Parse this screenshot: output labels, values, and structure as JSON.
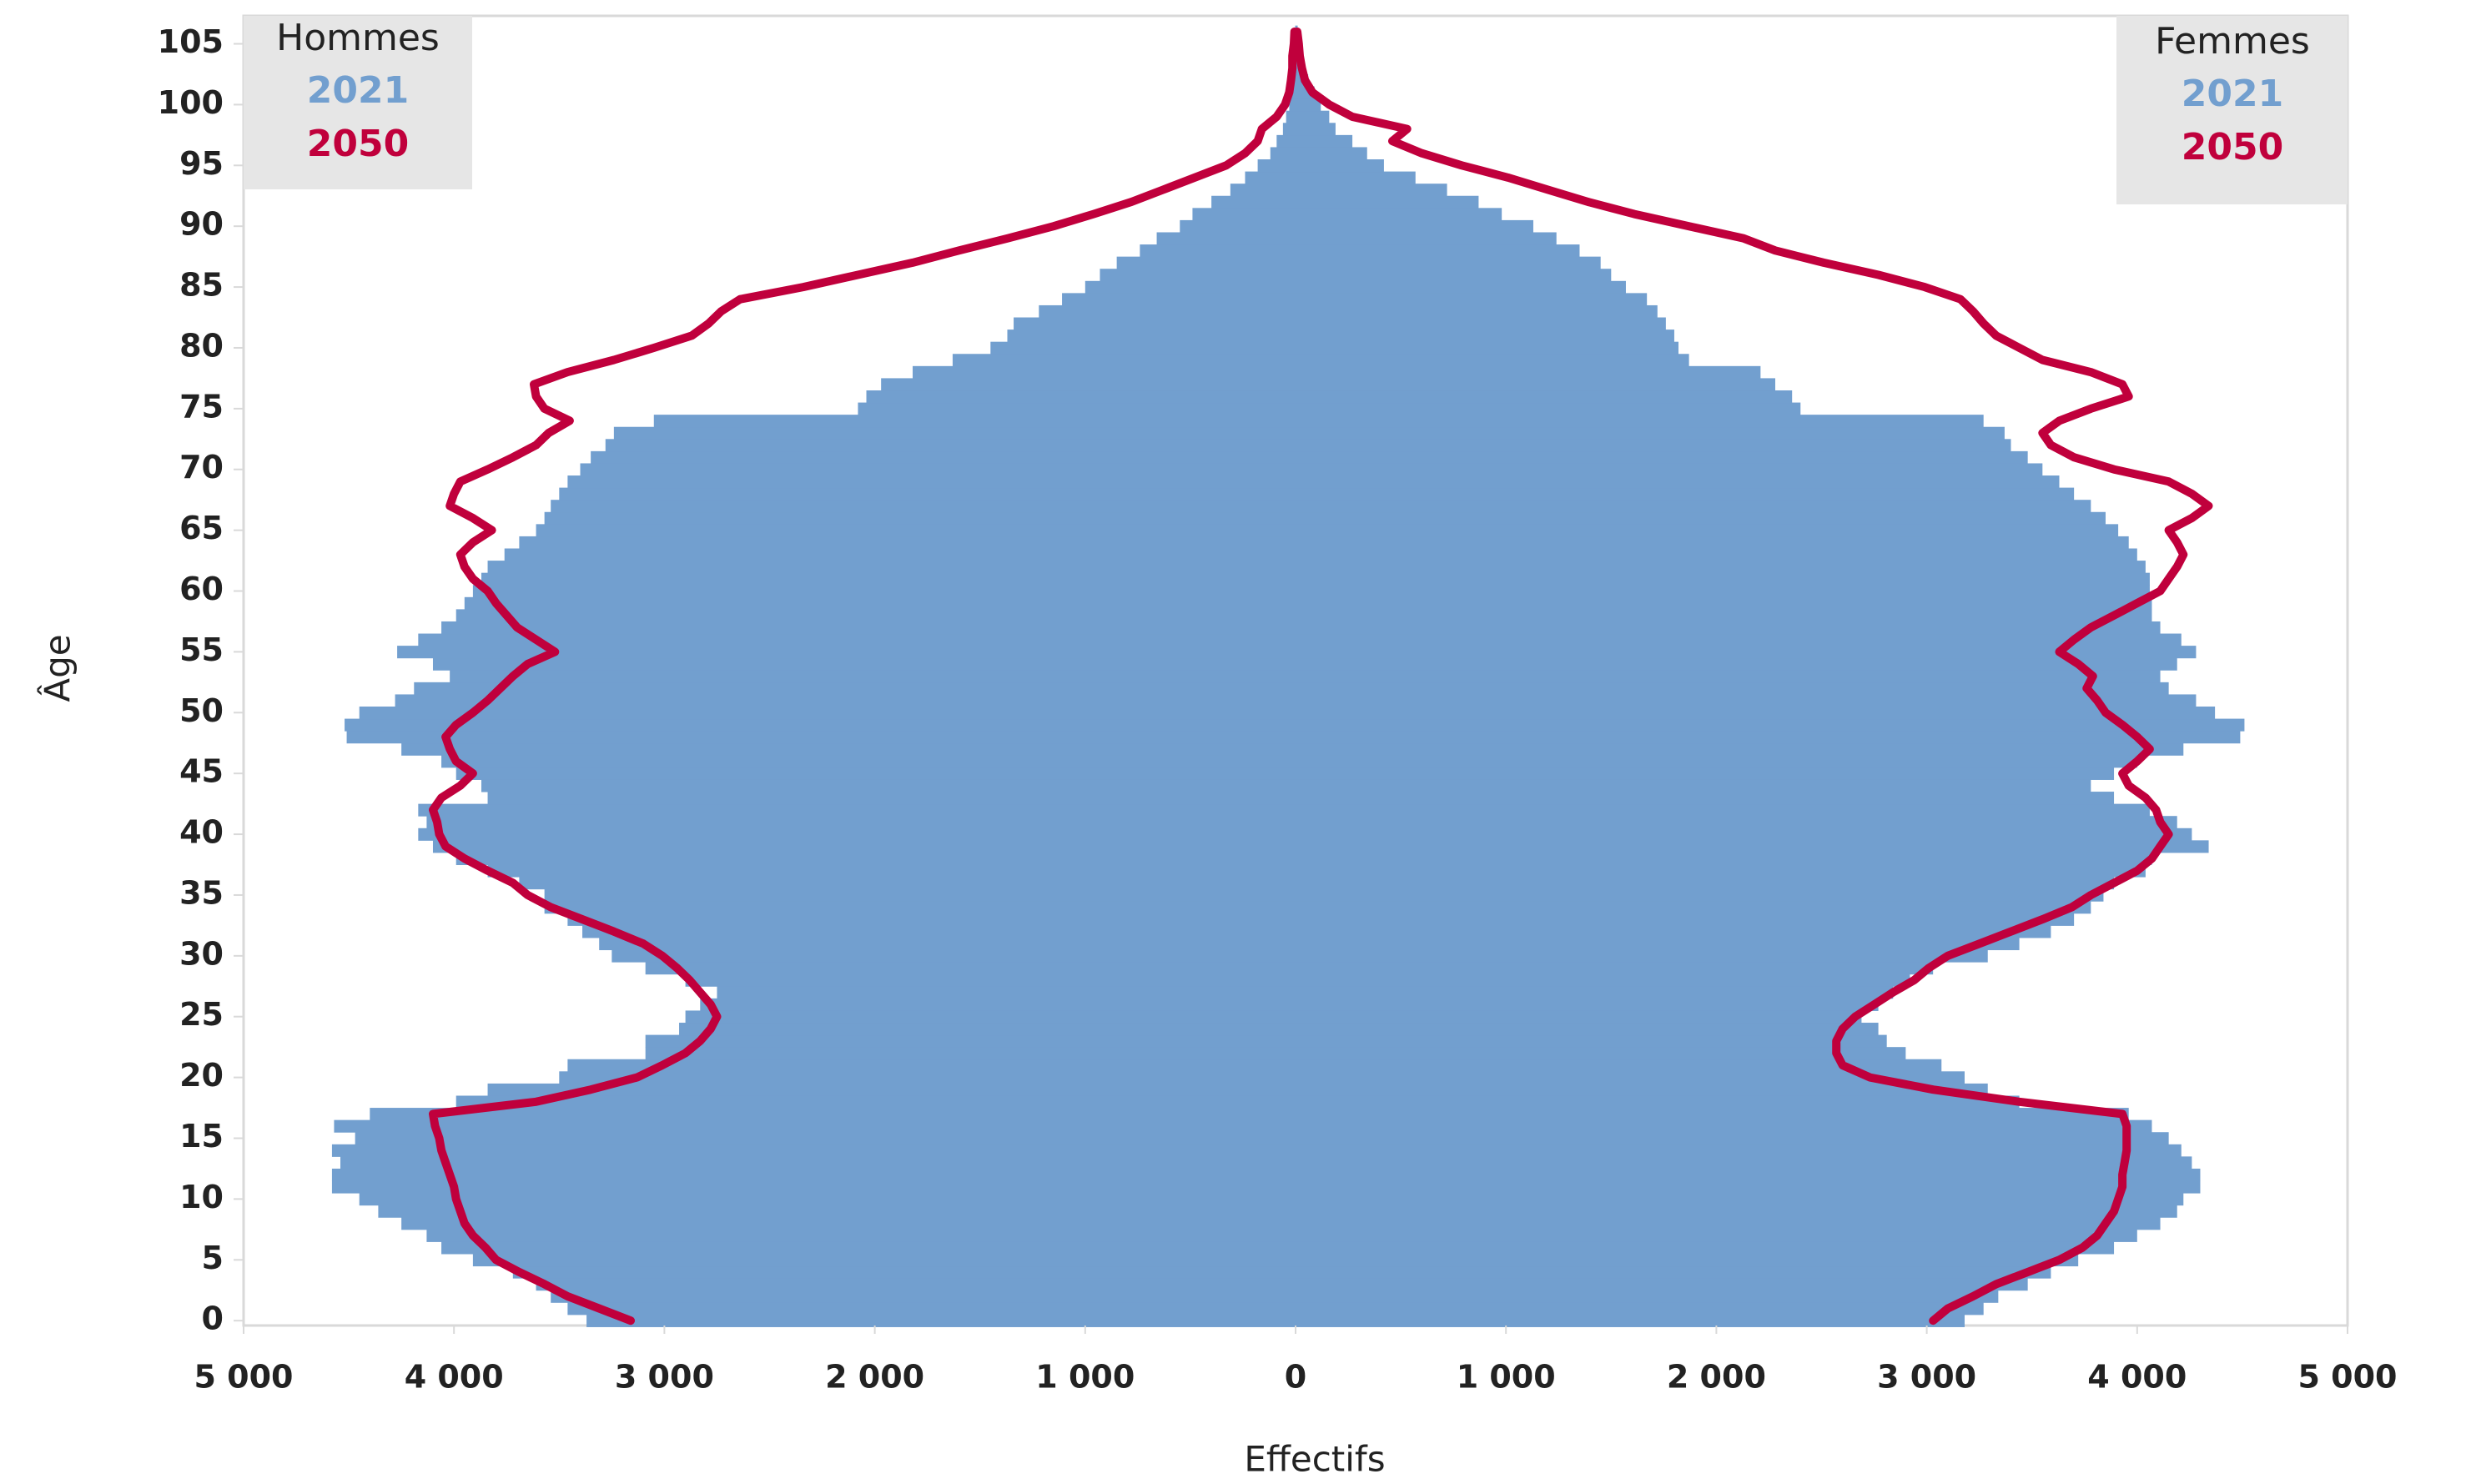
{
  "chart_data": {
    "type": "pyramid",
    "x_label": "Effectifs",
    "y_label": "Âge",
    "xlim": [
      -5000,
      5000
    ],
    "xticks": [
      {
        "value": -5000,
        "label": "5 000"
      },
      {
        "value": -4000,
        "label": "4 000"
      },
      {
        "value": -3000,
        "label": "3 000"
      },
      {
        "value": -2000,
        "label": "2 000"
      },
      {
        "value": -1000,
        "label": "1 000"
      },
      0,
      {
        "value": 1000,
        "label": "1 000"
      },
      {
        "value": 2000,
        "label": "2 000"
      },
      {
        "value": 3000,
        "label": "3 000"
      },
      {
        "value": 4000,
        "label": "4 000"
      },
      {
        "value": 5000,
        "label": "5 000"
      }
    ],
    "ylim": [
      -0.4,
      107.3
    ],
    "yticks": [
      0,
      5,
      10,
      15,
      20,
      25,
      30,
      35,
      40,
      45,
      50,
      55,
      60,
      65,
      70,
      75,
      80,
      85,
      90,
      95,
      100,
      105
    ],
    "y": [
      0,
      1,
      2,
      3,
      4,
      5,
      6,
      7,
      8,
      9,
      10,
      11,
      12,
      13,
      14,
      15,
      16,
      17,
      18,
      19,
      20,
      21,
      22,
      23,
      24,
      25,
      26,
      27,
      28,
      29,
      30,
      31,
      32,
      33,
      34,
      35,
      36,
      37,
      38,
      39,
      40,
      41,
      42,
      43,
      44,
      45,
      46,
      47,
      48,
      49,
      50,
      51,
      52,
      53,
      54,
      55,
      56,
      57,
      58,
      59,
      60,
      61,
      62,
      63,
      64,
      65,
      66,
      67,
      68,
      69,
      70,
      71,
      72,
      73,
      74,
      75,
      76,
      77,
      78,
      79,
      80,
      81,
      82,
      83,
      84,
      85,
      86,
      87,
      88,
      89,
      90,
      91,
      92,
      93,
      94,
      95,
      96,
      97,
      98,
      99,
      100,
      101,
      102,
      103,
      104,
      105,
      106
    ],
    "panels": [
      {
        "name": "Hommes",
        "series": [
          {
            "name": "2021",
            "color": "#729fcf",
            "style": "bar",
            "values": [
              -3370,
              -3460,
              -3540,
              -3610,
              -3720,
              -3910,
              -4060,
              -4130,
              -4250,
              -4360,
              -4450,
              -4580,
              -4580,
              -4540,
              -4580,
              -4470,
              -4570,
              -4400,
              -3990,
              -3840,
              -3500,
              -3460,
              -3090,
              -3090,
              -2930,
              -2900,
              -2830,
              -2750,
              -2900,
              -3090,
              -3250,
              -3310,
              -3390,
              -3460,
              -3570,
              -3570,
              -3690,
              -3840,
              -3990,
              -4100,
              -4170,
              -4130,
              -4170,
              -3840,
              -3870,
              -3990,
              -4060,
              -4250,
              -4510,
              -4520,
              -4450,
              -4280,
              -4190,
              -4020,
              -4100,
              -4270,
              -4170,
              -4060,
              -3990,
              -3950,
              -3910,
              -3870,
              -3840,
              -3760,
              -3690,
              -3610,
              -3570,
              -3540,
              -3500,
              -3460,
              -3400,
              -3350,
              -3280,
              -3240,
              -3050,
              -2080,
              -2040,
              -1970,
              -1820,
              -1630,
              -1450,
              -1370,
              -1340,
              -1220,
              -1110,
              -1000,
              -930,
              -850,
              -740,
              -660,
              -550,
              -490,
              -400,
              -310,
              -240,
              -180,
              -120,
              -90,
              -60,
              -45,
              -30,
              -22,
              -15,
              -8,
              -5,
              -3,
              -2
            ]
          },
          {
            "name": "2050",
            "color": "#c0003c",
            "style": "line",
            "values": [
              -3160,
              -3310,
              -3460,
              -3570,
              -3690,
              -3800,
              -3850,
              -3910,
              -3950,
              -3970,
              -3990,
              -4000,
              -4020,
              -4040,
              -4060,
              -4070,
              -4090,
              -4100,
              -3610,
              -3350,
              -3130,
              -3010,
              -2900,
              -2830,
              -2780,
              -2750,
              -2780,
              -2830,
              -2880,
              -2940,
              -3010,
              -3100,
              -3240,
              -3390,
              -3540,
              -3650,
              -3720,
              -3840,
              -3950,
              -4040,
              -4070,
              -4080,
              -4100,
              -4060,
              -3970,
              -3910,
              -3990,
              -4020,
              -4040,
              -3990,
              -3910,
              -3840,
              -3780,
              -3720,
              -3650,
              -3520,
              -3610,
              -3700,
              -3750,
              -3800,
              -3840,
              -3910,
              -3950,
              -3970,
              -3910,
              -3820,
              -3910,
              -4020,
              -4000,
              -3970,
              -3840,
              -3720,
              -3610,
              -3550,
              -3450,
              -3570,
              -3610,
              -3620,
              -3460,
              -3240,
              -3050,
              -2870,
              -2790,
              -2730,
              -2640,
              -2340,
              -2080,
              -1820,
              -1600,
              -1370,
              -1150,
              -960,
              -780,
              -630,
              -480,
              -330,
              -240,
              -180,
              -160,
              -90,
              -50,
              -30,
              -22,
              -15,
              -15,
              -8,
              -5
            ]
          }
        ]
      },
      {
        "name": "Femmes",
        "series": [
          {
            "name": "2021",
            "color": "#729fcf",
            "style": "bar",
            "values": [
              3180,
              3270,
              3340,
              3480,
              3590,
              3720,
              3890,
              4000,
              4110,
              4190,
              4220,
              4300,
              4300,
              4260,
              4210,
              4150,
              4070,
              3960,
              3440,
              3290,
              3180,
              3070,
              2900,
              2810,
              2770,
              2690,
              2770,
              2840,
              2920,
              3030,
              3290,
              3440,
              3590,
              3700,
              3780,
              3840,
              3890,
              4040,
              4070,
              4340,
              4260,
              4190,
              4060,
              3890,
              3780,
              3890,
              4000,
              4220,
              4490,
              4510,
              4370,
              4280,
              4150,
              4110,
              4190,
              4280,
              4210,
              4110,
              4070,
              4070,
              4060,
              4060,
              4040,
              4000,
              3960,
              3910,
              3850,
              3780,
              3700,
              3630,
              3550,
              3480,
              3400,
              3370,
              3270,
              2400,
              2360,
              2280,
              2210,
              1870,
              1820,
              1800,
              1760,
              1720,
              1670,
              1570,
              1500,
              1450,
              1350,
              1240,
              1130,
              980,
              870,
              720,
              570,
              420,
              340,
              270,
              190,
              160,
              120,
              90,
              60,
              40,
              20,
              15,
              10
            ]
          },
          {
            "name": "2050",
            "color": "#c0003c",
            "style": "line",
            "values": [
              3030,
              3100,
              3220,
              3330,
              3480,
              3630,
              3740,
              3810,
              3850,
              3890,
              3910,
              3930,
              3930,
              3940,
              3950,
              3950,
              3950,
              3930,
              3440,
              3030,
              2730,
              2600,
              2570,
              2570,
              2600,
              2660,
              2750,
              2840,
              2940,
              3010,
              3100,
              3250,
              3400,
              3550,
              3690,
              3780,
              3890,
              4000,
              4070,
              4110,
              4150,
              4110,
              4090,
              4040,
              3960,
              3930,
              4000,
              4060,
              4000,
              3930,
              3850,
              3810,
              3760,
              3790,
              3720,
              3630,
              3700,
              3780,
              3890,
              4000,
              4110,
              4150,
              4190,
              4220,
              4190,
              4150,
              4260,
              4340,
              4260,
              4150,
              3890,
              3700,
              3590,
              3550,
              3630,
              3780,
              3960,
              3930,
              3780,
              3550,
              3440,
              3330,
              3270,
              3220,
              3160,
              2990,
              2770,
              2510,
              2280,
              2130,
              1870,
              1610,
              1390,
              1200,
              1010,
              790,
              600,
              460,
              530,
              270,
              160,
              80,
              45,
              30,
              20,
              15,
              8
            ]
          }
        ]
      }
    ]
  }
}
